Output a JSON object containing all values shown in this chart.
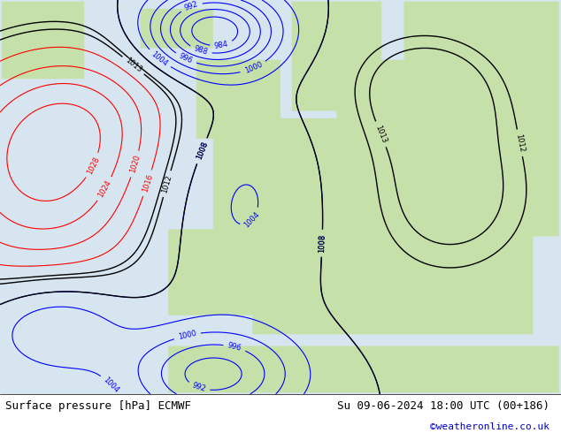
{
  "title_left": "Surface pressure [hPa] ECMWF",
  "title_right": "Su 09-06-2024 18:00 UTC (00+186)",
  "credit": "©weatheronline.co.uk",
  "bg_color": "#d0d8e0",
  "land_color": "#c8e0b0",
  "sea_color": "#d8eaf8",
  "footer_bg": "#ffffff",
  "footer_text_color": "#000000",
  "credit_color": "#0000cc",
  "fig_width": 6.34,
  "fig_height": 4.9,
  "dpi": 100
}
